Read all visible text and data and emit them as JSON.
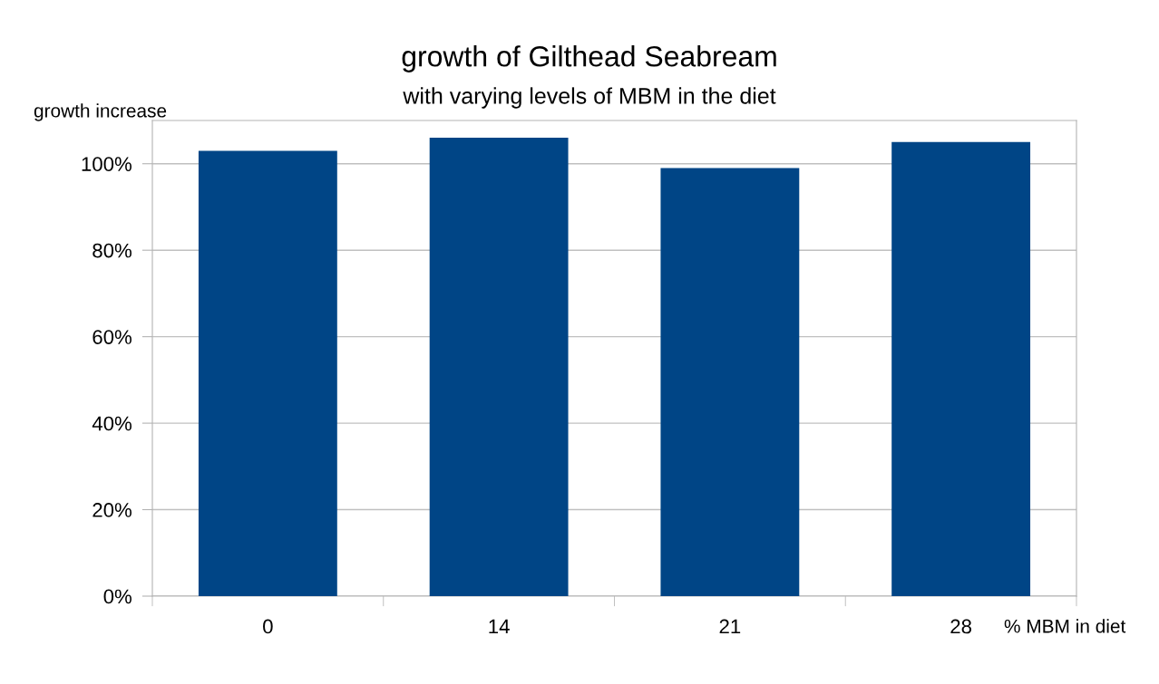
{
  "chart_data": {
    "type": "bar",
    "title": "growth of Gilthead Seabream",
    "subtitle": "with varying levels of MBM in the diet",
    "ylabel": "growth increase",
    "xlabel": "% MBM in diet",
    "categories": [
      "0",
      "14",
      "21",
      "28"
    ],
    "values": [
      103,
      106,
      99,
      105
    ],
    "color": "#004586",
    "ylim": [
      0,
      110
    ],
    "yticks": [
      {
        "value": 0,
        "label": "0%"
      },
      {
        "value": 20,
        "label": "20%"
      },
      {
        "value": 40,
        "label": "40%"
      },
      {
        "value": 60,
        "label": "60%"
      },
      {
        "value": 80,
        "label": "80%"
      },
      {
        "value": 100,
        "label": "100%"
      }
    ],
    "grid": "y"
  }
}
